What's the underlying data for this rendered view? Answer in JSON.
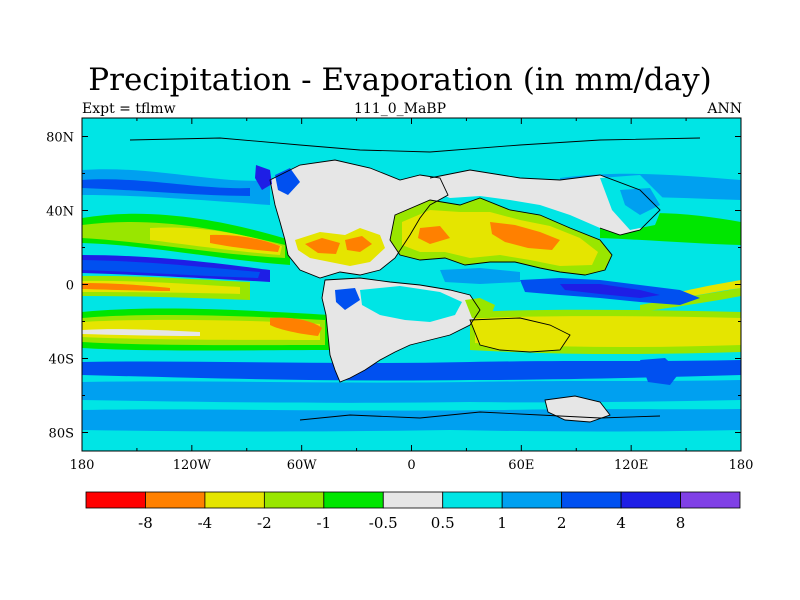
{
  "title": "Precipitation - Evaporation (in mm/day)",
  "left_label": "Expt = tflmw",
  "center_label": "111_0_MaBP",
  "right_label": "ANN",
  "map": {
    "projection": "cylindrical-equidistant",
    "lon_range": [
      -180,
      180
    ],
    "lat_range": [
      -90,
      90
    ],
    "x_tick_labels": [
      "180",
      "120W",
      "60W",
      "0",
      "60E",
      "120E",
      "180"
    ],
    "y_tick_labels": [
      "80N",
      "40N",
      "0",
      "40S",
      "80S"
    ]
  },
  "colorbar": {
    "labels": [
      "-8",
      "-4",
      "-2",
      "-1",
      "-0.5",
      "0.5",
      "1",
      "2",
      "4",
      "8"
    ],
    "colors": [
      "#ff0000",
      "#ff8000",
      "#e5e500",
      "#99e600",
      "#00e600",
      "#e6e6e6",
      "#00e5e5",
      "#00a0f0",
      "#0050f0",
      "#1e1ee6",
      "#8040e6"
    ]
  }
}
